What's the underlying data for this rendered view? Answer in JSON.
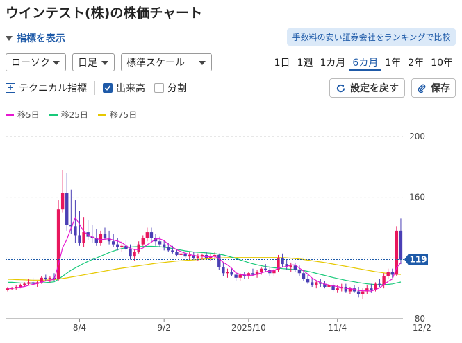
{
  "page": {
    "title": "ウインテスト(株)の株価チャート",
    "indicator_toggle": "指標を表示",
    "ranking_link": "手数料の安い証券会社をランキングで比較"
  },
  "controls": {
    "chart_type": "ローソク",
    "span": "日足",
    "scale": "標準スケール",
    "periods": [
      "1日",
      "1週",
      "1カ月",
      "6カ月",
      "1年",
      "2年",
      "10年"
    ],
    "active_period": "6カ月",
    "technical_label": "テクニカル指標",
    "volume_label": "出来高",
    "split_label": "分割",
    "reset_label": "設定を戻す",
    "save_label": "保存"
  },
  "colors": {
    "up": "#e8175d",
    "down": "#4a3fb5",
    "ma5": "#e617d0",
    "ma25": "#18c97a",
    "ma75": "#e6c800",
    "accent": "#1e5aa8"
  },
  "chart_data": {
    "type": "candlestick",
    "title": "",
    "xlabel": "",
    "ylabel": "",
    "ylim": [
      80,
      200
    ],
    "y_ticks": [
      200,
      160,
      120,
      80
    ],
    "y_tick_labels": [
      "200",
      "160",
      "",
      "80"
    ],
    "x_tick_labels": [
      "8/4",
      "9/2",
      "2025/10",
      "11/4",
      "12/2"
    ],
    "x_tick_index": [
      17,
      37,
      57,
      78,
      98
    ],
    "current_price": 119,
    "current_price_label": "119",
    "grid": true,
    "legend": {
      "position": "top-left",
      "entries": [
        "移5日",
        "移25日",
        "移75日"
      ]
    },
    "candles": [
      [
        99,
        101,
        98,
        100
      ],
      [
        100,
        101,
        99,
        100
      ],
      [
        100,
        102,
        99,
        101
      ],
      [
        101,
        103,
        100,
        102
      ],
      [
        102,
        104,
        101,
        103
      ],
      [
        103,
        106,
        102,
        104
      ],
      [
        104,
        107,
        102,
        103
      ],
      [
        103,
        105,
        101,
        104
      ],
      [
        104,
        108,
        103,
        107
      ],
      [
        107,
        109,
        105,
        106
      ],
      [
        106,
        108,
        104,
        107
      ],
      [
        107,
        110,
        105,
        106
      ],
      [
        106,
        158,
        105,
        152
      ],
      [
        152,
        178,
        150,
        163
      ],
      [
        163,
        176,
        138,
        142
      ],
      [
        142,
        165,
        136,
        141
      ],
      [
        141,
        158,
        130,
        135
      ],
      [
        135,
        151,
        128,
        130
      ],
      [
        130,
        147,
        127,
        137
      ],
      [
        137,
        145,
        132,
        134
      ],
      [
        134,
        142,
        130,
        133
      ],
      [
        133,
        139,
        128,
        130
      ],
      [
        130,
        138,
        128,
        136
      ],
      [
        136,
        140,
        132,
        133
      ],
      [
        133,
        138,
        129,
        131
      ],
      [
        131,
        136,
        127,
        129
      ],
      [
        129,
        133,
        125,
        127
      ],
      [
        127,
        131,
        124,
        128
      ],
      [
        128,
        132,
        125,
        126
      ],
      [
        126,
        129,
        119,
        121
      ],
      [
        121,
        126,
        118,
        124
      ],
      [
        124,
        131,
        123,
        129
      ],
      [
        129,
        135,
        128,
        133
      ],
      [
        133,
        140,
        131,
        137
      ],
      [
        137,
        140,
        131,
        133
      ],
      [
        133,
        136,
        128,
        131
      ],
      [
        131,
        134,
        127,
        129
      ],
      [
        129,
        132,
        125,
        127
      ],
      [
        127,
        130,
        124,
        125
      ],
      [
        125,
        128,
        123,
        124
      ],
      [
        124,
        126,
        121,
        122
      ],
      [
        122,
        125,
        120,
        123
      ],
      [
        123,
        125,
        120,
        121
      ],
      [
        121,
        124,
        119,
        122
      ],
      [
        122,
        124,
        119,
        120
      ],
      [
        120,
        123,
        118,
        121
      ],
      [
        121,
        123,
        119,
        122
      ],
      [
        122,
        124,
        119,
        120
      ],
      [
        120,
        123,
        118,
        121
      ],
      [
        121,
        124,
        119,
        122
      ],
      [
        122,
        123,
        112,
        114
      ],
      [
        114,
        117,
        108,
        110
      ],
      [
        110,
        113,
        107,
        111
      ],
      [
        111,
        113,
        108,
        109
      ],
      [
        109,
        111,
        105,
        107
      ],
      [
        107,
        110,
        105,
        109
      ],
      [
        109,
        111,
        106,
        108
      ],
      [
        108,
        111,
        106,
        110
      ],
      [
        110,
        113,
        108,
        109
      ],
      [
        109,
        112,
        107,
        111
      ],
      [
        111,
        114,
        109,
        113
      ],
      [
        113,
        116,
        111,
        112
      ],
      [
        112,
        114,
        108,
        110
      ],
      [
        110,
        113,
        108,
        112
      ],
      [
        112,
        122,
        111,
        120
      ],
      [
        120,
        123,
        114,
        116
      ],
      [
        116,
        119,
        112,
        114
      ],
      [
        114,
        117,
        111,
        115
      ],
      [
        115,
        117,
        111,
        112
      ],
      [
        112,
        115,
        108,
        110
      ],
      [
        110,
        112,
        105,
        106
      ],
      [
        106,
        109,
        103,
        104
      ],
      [
        104,
        106,
        101,
        102
      ],
      [
        102,
        105,
        100,
        104
      ],
      [
        104,
        106,
        101,
        103
      ],
      [
        103,
        105,
        100,
        101
      ],
      [
        101,
        104,
        99,
        102
      ],
      [
        102,
        104,
        98,
        99
      ],
      [
        99,
        102,
        97,
        100
      ],
      [
        100,
        103,
        98,
        101
      ],
      [
        101,
        103,
        97,
        98
      ],
      [
        98,
        101,
        96,
        100
      ],
      [
        100,
        102,
        97,
        98
      ],
      [
        98,
        101,
        94,
        96
      ],
      [
        96,
        100,
        93,
        98
      ],
      [
        98,
        102,
        96,
        100
      ],
      [
        100,
        103,
        97,
        99
      ],
      [
        99,
        104,
        98,
        103
      ],
      [
        103,
        106,
        101,
        102
      ],
      [
        102,
        110,
        100,
        108
      ],
      [
        108,
        113,
        106,
        111
      ],
      [
        111,
        113,
        107,
        109
      ],
      [
        109,
        141,
        108,
        138
      ],
      [
        138,
        146,
        116,
        119
      ]
    ],
    "ma5": [
      100,
      100,
      100.4,
      100.8,
      101.2,
      102,
      102.6,
      103.2,
      104.2,
      104.8,
      105.4,
      106,
      115.6,
      126.8,
      132.2,
      139.8,
      146.6,
      142.2,
      137.4,
      135.4,
      133.8,
      132.8,
      132,
      132.4,
      132.6,
      131.8,
      131.2,
      130.2,
      128.2,
      126.2,
      125.6,
      125.6,
      126.6,
      128.8,
      130.4,
      132.6,
      132.6,
      131.4,
      129,
      127.2,
      125.4,
      124.2,
      123.2,
      122.4,
      121.6,
      121.4,
      121.2,
      120.8,
      120.8,
      121.2,
      119.4,
      117.2,
      115.4,
      113.2,
      110.2,
      109.2,
      108.8,
      108.6,
      108.6,
      109.4,
      110.2,
      111,
      111.4,
      111.6,
      113.4,
      114,
      114.4,
      115.4,
      115.4,
      113.4,
      111.4,
      109.4,
      106.8,
      105.2,
      103.8,
      102.8,
      102.2,
      101.6,
      101.2,
      100.6,
      100,
      99.8,
      99.4,
      98.6,
      98.4,
      98.4,
      98.2,
      99.2,
      100.4,
      102.4,
      104.6,
      106.2,
      113.6,
      117
    ],
    "ma25": [
      104,
      104,
      103.8,
      103.6,
      103.5,
      103.4,
      103.4,
      103.5,
      103.6,
      103.8,
      104,
      104.3,
      106,
      108,
      110,
      112,
      113.5,
      115,
      116.5,
      117.8,
      119,
      120,
      121.2,
      122.4,
      123.6,
      124.6,
      125.5,
      126.2,
      126.8,
      127.2,
      127.4,
      127.5,
      127.6,
      127.7,
      127.7,
      127.6,
      127.4,
      127.1,
      126.7,
      126.2,
      125.7,
      125.2,
      124.7,
      124.3,
      124,
      123.8,
      123.6,
      123.4,
      123.2,
      123,
      122.5,
      122,
      121.3,
      120.5,
      119.7,
      118.8,
      117.9,
      117,
      116.2,
      115.5,
      114.9,
      114.4,
      114,
      113.6,
      113.3,
      113,
      112.8,
      112.6,
      112.4,
      112.1,
      111.7,
      111.2,
      110.6,
      109.9,
      109.2,
      108.5,
      107.8,
      107.1,
      106.5,
      105.9,
      105.3,
      104.8,
      104.3,
      103.8,
      103.4,
      103,
      102.7,
      102.5,
      102.4,
      102.4,
      102.6,
      102.9,
      103.6,
      104.2
    ],
    "ma75": [
      106,
      105.9,
      105.8,
      105.7,
      105.6,
      105.5,
      105.4,
      105.4,
      105.4,
      105.5,
      105.6,
      105.8,
      106.1,
      106.5,
      106.9,
      107.4,
      107.9,
      108.4,
      108.9,
      109.4,
      109.9,
      110.4,
      110.9,
      111.4,
      111.9,
      112.4,
      112.9,
      113.3,
      113.7,
      114.1,
      114.5,
      114.9,
      115.3,
      115.7,
      116.1,
      116.5,
      116.8,
      117.1,
      117.4,
      117.7,
      118,
      118.2,
      118.4,
      118.6,
      118.8,
      119,
      119.2,
      119.4,
      119.6,
      119.8,
      120,
      120.1,
      120.2,
      120.3,
      120.3,
      120.3,
      120.3,
      120.3,
      120.3,
      120.3,
      120.3,
      120.3,
      120.3,
      120.3,
      120.3,
      120.2,
      120.1,
      119.9,
      119.6,
      119.3,
      119,
      118.6,
      118.2,
      117.8,
      117.4,
      117,
      116.5,
      116,
      115.5,
      115,
      114.5,
      114,
      113.5,
      113,
      112.5,
      112,
      111.5,
      111,
      110.6,
      110.2,
      109.8,
      109.5,
      109.3,
      109.2
    ]
  }
}
